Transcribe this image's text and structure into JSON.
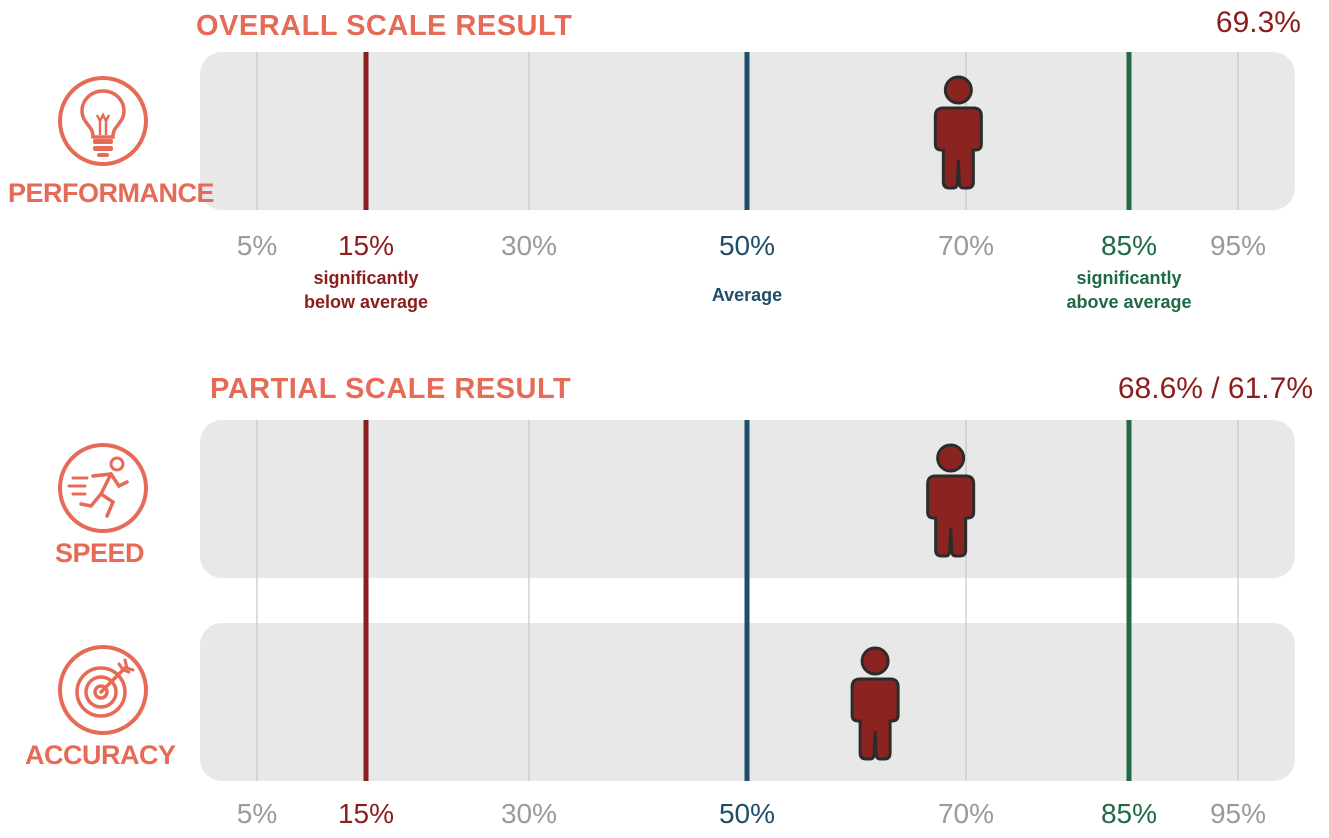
{
  "overall": {
    "title": "OVERALL SCALE RESULT",
    "result": "69.3%",
    "categories": [
      {
        "label": "PERFORMANCE",
        "icon": "lightbulb-icon",
        "value": 69.3
      }
    ]
  },
  "partial": {
    "title": "PARTIAL SCALE RESULT",
    "result": "68.6% / 61.7%",
    "categories": [
      {
        "label": "SPEED",
        "icon": "runner-icon",
        "value": 68.6
      },
      {
        "label": "ACCURACY",
        "icon": "target-icon",
        "value": 61.7
      }
    ]
  },
  "scale": {
    "ticks": [
      {
        "label": "5%",
        "value": 5,
        "style": "grey"
      },
      {
        "label": "15%",
        "value": 15,
        "style": "red"
      },
      {
        "label": "30%",
        "value": 30,
        "style": "grey"
      },
      {
        "label": "50%",
        "value": 50,
        "style": "blue"
      },
      {
        "label": "70%",
        "value": 70,
        "style": "grey"
      },
      {
        "label": "85%",
        "value": 85,
        "style": "green"
      },
      {
        "label": "95%",
        "value": 95,
        "style": "grey"
      }
    ],
    "notes": [
      {
        "value": 15,
        "line1": "significantly",
        "line2": "below average",
        "style": "red"
      },
      {
        "value": 50,
        "line1": "Average",
        "line2": "",
        "style": "blue"
      },
      {
        "value": 85,
        "line1": "significantly",
        "line2": "above average",
        "style": "green"
      }
    ]
  },
  "colors": {
    "accent": "#e66b57",
    "below": "#8b1d1d",
    "average": "#1f4e6b",
    "above": "#1f6a45",
    "track": "#e8e8e8",
    "gridline": "#c9c9c9",
    "person": "#8b2420"
  },
  "chart_data": {
    "type": "bar",
    "categories": [
      "PERFORMANCE",
      "SPEED",
      "ACCURACY"
    ],
    "values": [
      69.3,
      68.6,
      61.7
    ],
    "xlabel": "",
    "ylabel": "",
    "xlim": [
      5,
      95
    ],
    "reference_lines": [
      {
        "value": 15,
        "label": "significantly below average"
      },
      {
        "value": 50,
        "label": "Average"
      },
      {
        "value": 85,
        "label": "significantly above average"
      }
    ]
  }
}
